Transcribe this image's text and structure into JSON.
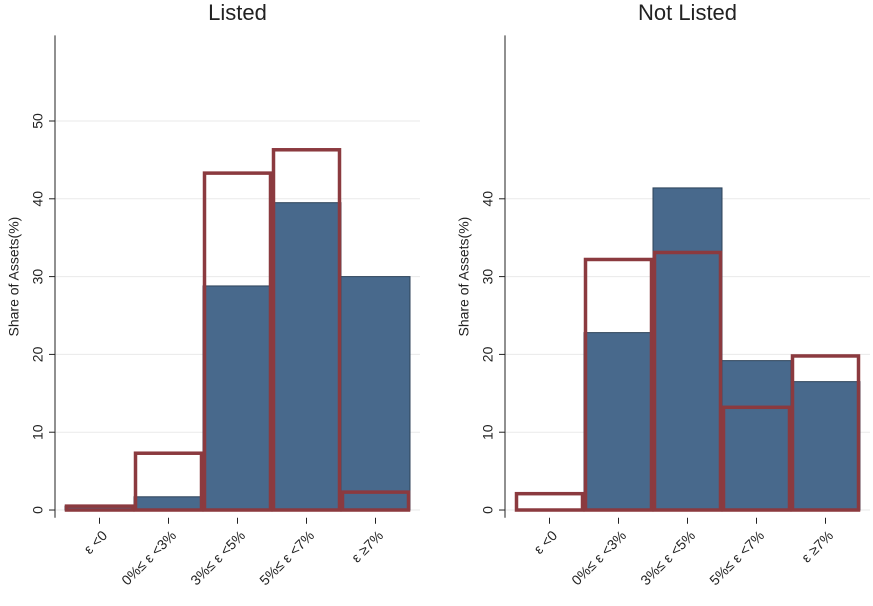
{
  "chart_data": [
    {
      "type": "bar",
      "title": "Listed",
      "y_label": "Share of Assets(%)",
      "categories": [
        "ε <0",
        "0%≤ ε <3%",
        "3%≤ ε <5%",
        "5%≤ ε <7%",
        "ε ≥7%"
      ],
      "series": [
        {
          "color": "#48698c",
          "style": "filled",
          "values": [
            0.5,
            1.7,
            28.8,
            39.5,
            30.0
          ]
        },
        {
          "color": "#8b3a3f",
          "style": "outline",
          "values": [
            0.5,
            7.3,
            43.3,
            46.3,
            2.3
          ]
        }
      ],
      "ylim": [
        -1,
        61
      ],
      "yticks": [
        0,
        10,
        20,
        30,
        40,
        50
      ],
      "grid": true
    },
    {
      "type": "bar",
      "title": "Not Listed",
      "y_label": "Share of Assets(%)",
      "categories": [
        "ε <0",
        "0%≤ ε <3%",
        "3%≤ ε <5%",
        "5%≤ ε <7%",
        "ε ≥7%"
      ],
      "series": [
        {
          "color": "#48698c",
          "style": "filled",
          "values": [
            0,
            22.8,
            41.4,
            19.2,
            16.5
          ]
        },
        {
          "color": "#8b3a3f",
          "style": "outline",
          "values": [
            2.1,
            32.2,
            33.1,
            13.2,
            19.8
          ]
        }
      ],
      "ylim": [
        -1,
        61
      ],
      "yticks": [
        0,
        10,
        20,
        30,
        40
      ],
      "grid": true
    }
  ]
}
